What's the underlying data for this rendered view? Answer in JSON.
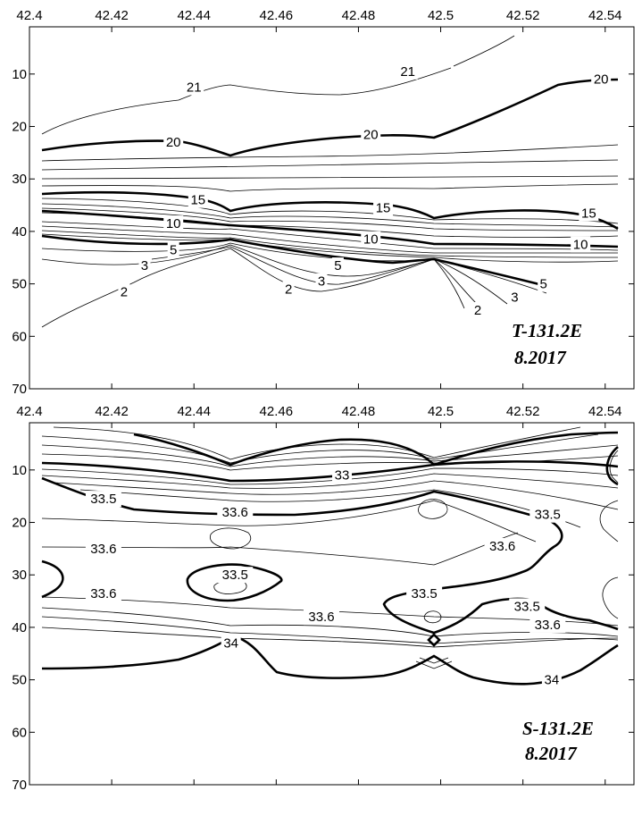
{
  "chart_data": [
    {
      "type": "contour",
      "panel_label": "T-131.2E",
      "date_label": "8.2017",
      "x_ticks": [
        "42.4",
        "42.42",
        "42.44",
        "42.46",
        "42.48",
        "42.5",
        "42.52",
        "42.54"
      ],
      "x_tick_values": [
        42.4,
        42.42,
        42.44,
        42.46,
        42.48,
        42.5,
        42.52,
        42.54
      ],
      "y_ticks": [
        "10",
        "20",
        "30",
        "40",
        "50",
        "60",
        "70"
      ],
      "y_tick_values": [
        10,
        20,
        30,
        40,
        50,
        60,
        70
      ],
      "xlim": [
        42.4,
        42.547
      ],
      "ylim": [
        1,
        70
      ],
      "y_inverted": true,
      "bold_levels": [
        20,
        15,
        10,
        5
      ],
      "contour_labels": [
        {
          "text": "21",
          "x": 42.44,
          "y": 12.5
        },
        {
          "text": "21",
          "x": 42.492,
          "y": 9.5
        },
        {
          "text": "20",
          "x": 42.539,
          "y": 11
        },
        {
          "text": "20",
          "x": 42.435,
          "y": 23
        },
        {
          "text": "20",
          "x": 42.483,
          "y": 21.5
        },
        {
          "text": "15",
          "x": 42.441,
          "y": 34
        },
        {
          "text": "15",
          "x": 42.486,
          "y": 35.5
        },
        {
          "text": "15",
          "x": 42.536,
          "y": 36.5
        },
        {
          "text": "10",
          "x": 42.435,
          "y": 38.5
        },
        {
          "text": "10",
          "x": 42.483,
          "y": 41.5
        },
        {
          "text": "10",
          "x": 42.534,
          "y": 42.5
        },
        {
          "text": "5",
          "x": 42.435,
          "y": 43.5
        },
        {
          "text": "5",
          "x": 42.475,
          "y": 46.5
        },
        {
          "text": "5",
          "x": 42.525,
          "y": 50
        },
        {
          "text": "3",
          "x": 42.428,
          "y": 46.5
        },
        {
          "text": "3",
          "x": 42.471,
          "y": 49.5
        },
        {
          "text": "3",
          "x": 42.518,
          "y": 52.5
        },
        {
          "text": "2",
          "x": 42.423,
          "y": 51.5
        },
        {
          "text": "2",
          "x": 42.463,
          "y": 51
        },
        {
          "text": "2",
          "x": 42.509,
          "y": 55
        }
      ]
    },
    {
      "type": "contour",
      "panel_label": "S-131.2E",
      "date_label": "8.2017",
      "x_ticks": [
        "42.4",
        "42.42",
        "42.44",
        "42.46",
        "42.48",
        "42.5",
        "42.52",
        "42.54"
      ],
      "x_tick_values": [
        42.4,
        42.42,
        42.44,
        42.46,
        42.48,
        42.5,
        42.52,
        42.54
      ],
      "y_ticks": [
        "10",
        "20",
        "30",
        "40",
        "50",
        "60",
        "70"
      ],
      "y_tick_values": [
        10,
        20,
        30,
        40,
        50,
        60,
        70
      ],
      "xlim": [
        42.4,
        42.547
      ],
      "ylim": [
        1,
        70
      ],
      "y_inverted": true,
      "bold_levels": [
        33,
        33.5,
        34
      ],
      "contour_labels": [
        {
          "text": "33",
          "x": 42.476,
          "y": 11
        },
        {
          "text": "33.5",
          "x": 42.418,
          "y": 15.5
        },
        {
          "text": "33.5",
          "x": 42.526,
          "y": 18.5
        },
        {
          "text": "33.6",
          "x": 42.45,
          "y": 18
        },
        {
          "text": "33.6",
          "x": 42.418,
          "y": 25
        },
        {
          "text": "33.6",
          "x": 42.515,
          "y": 24.5
        },
        {
          "text": "33.5",
          "x": 42.45,
          "y": 30
        },
        {
          "text": "33.5",
          "x": 42.496,
          "y": 33.5
        },
        {
          "text": "33.5",
          "x": 42.521,
          "y": 36
        },
        {
          "text": "33.6",
          "x": 42.418,
          "y": 33.5
        },
        {
          "text": "33.6",
          "x": 42.471,
          "y": 38
        },
        {
          "text": "33.6",
          "x": 42.526,
          "y": 39.5
        },
        {
          "text": "34",
          "x": 42.449,
          "y": 43
        },
        {
          "text": "34",
          "x": 42.527,
          "y": 50
        }
      ]
    }
  ]
}
